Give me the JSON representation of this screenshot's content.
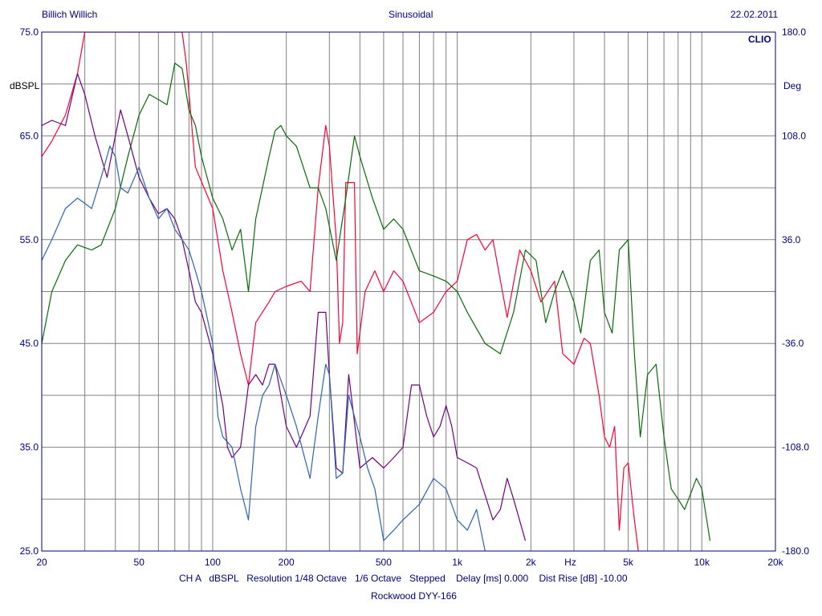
{
  "header": {
    "left": "Billich Willich",
    "center": "Sinusoidal",
    "right": "22.02.2011"
  },
  "brand": "CLIO",
  "footer": {
    "settings": "CH A   dBSPL   Resolution 1/48 Octave   1/6 Octave   Stepped    Delay [ms] 0.000    Dist Rise [dB] -10.00",
    "title": "Rockwood DYY-166"
  },
  "colors": {
    "axis": "#000080",
    "grid": "#808080",
    "red": "#ff0033",
    "green": "#0a6b0a",
    "purple": "#700080",
    "blue": "#2e64b0"
  },
  "chart_data": {
    "type": "line",
    "x_scale": "log",
    "xlim": [
      20,
      20000
    ],
    "x_ticks": [
      {
        "v": 20,
        "label": "20"
      },
      {
        "v": 50,
        "label": "50"
      },
      {
        "v": 100,
        "label": "100"
      },
      {
        "v": 200,
        "label": "200"
      },
      {
        "v": 500,
        "label": "500"
      },
      {
        "v": 1000,
        "label": "1k"
      },
      {
        "v": 2000,
        "label": "2k"
      },
      {
        "v": 2900,
        "label": "Hz"
      },
      {
        "v": 5000,
        "label": "5k"
      },
      {
        "v": 10000,
        "label": "10k"
      },
      {
        "v": 20000,
        "label": "20k"
      }
    ],
    "y_left": {
      "label": "dBSPL",
      "lim": [
        25,
        75
      ],
      "ticks": [
        "25.0",
        "35.0",
        "45.0",
        "55.0",
        "65.0",
        "75.0"
      ]
    },
    "y_right": {
      "label": "Deg",
      "lim": [
        -180,
        180
      ],
      "ticks": [
        "-180.0",
        "-108.0",
        "-36.0",
        "36.0",
        "108.0",
        "180.0"
      ]
    },
    "grid": true,
    "series": [
      {
        "color": "red",
        "points": [
          [
            20,
            63
          ],
          [
            22,
            64.5
          ],
          [
            25,
            67
          ],
          [
            28,
            71
          ],
          [
            30,
            75
          ],
          [
            75,
            75
          ],
          [
            78,
            72
          ],
          [
            85,
            62
          ],
          [
            100,
            58
          ],
          [
            110,
            52
          ],
          [
            120,
            48
          ],
          [
            130,
            44
          ],
          [
            140,
            41
          ],
          [
            150,
            47
          ],
          [
            170,
            49
          ],
          [
            180,
            50
          ],
          [
            200,
            50.5
          ],
          [
            230,
            51
          ],
          [
            250,
            50
          ],
          [
            270,
            60
          ],
          [
            290,
            66
          ],
          [
            300,
            64
          ],
          [
            320,
            55
          ],
          [
            330,
            45
          ],
          [
            340,
            47
          ],
          [
            350,
            60.5
          ],
          [
            380,
            60.5
          ],
          [
            390,
            44
          ],
          [
            420,
            50
          ],
          [
            460,
            52
          ],
          [
            500,
            50
          ],
          [
            550,
            52
          ],
          [
            600,
            51
          ],
          [
            700,
            47
          ],
          [
            800,
            48
          ],
          [
            900,
            50
          ],
          [
            1000,
            51
          ],
          [
            1100,
            55
          ],
          [
            1200,
            55.5
          ],
          [
            1300,
            54
          ],
          [
            1400,
            55
          ],
          [
            1600,
            47.5
          ],
          [
            1800,
            54
          ],
          [
            2000,
            52
          ],
          [
            2200,
            49
          ],
          [
            2500,
            51
          ],
          [
            2700,
            44
          ],
          [
            3000,
            43
          ],
          [
            3300,
            45.5
          ],
          [
            3500,
            45
          ],
          [
            3800,
            40
          ],
          [
            4000,
            36
          ],
          [
            4200,
            35
          ],
          [
            4400,
            37
          ],
          [
            4600,
            27
          ],
          [
            4800,
            33
          ],
          [
            5000,
            33.5
          ],
          [
            5300,
            28
          ],
          [
            5500,
            25
          ]
        ]
      },
      {
        "color": "green",
        "points": [
          [
            20,
            45
          ],
          [
            22,
            50
          ],
          [
            25,
            53
          ],
          [
            28,
            54.5
          ],
          [
            32,
            54
          ],
          [
            35,
            54.5
          ],
          [
            40,
            58
          ],
          [
            45,
            63
          ],
          [
            50,
            67
          ],
          [
            55,
            69
          ],
          [
            60,
            68.5
          ],
          [
            65,
            68
          ],
          [
            70,
            72
          ],
          [
            75,
            71.5
          ],
          [
            80,
            67.5
          ],
          [
            85,
            66
          ],
          [
            90,
            63
          ],
          [
            100,
            59
          ],
          [
            110,
            57
          ],
          [
            120,
            54
          ],
          [
            130,
            56
          ],
          [
            140,
            50
          ],
          [
            150,
            57
          ],
          [
            170,
            63
          ],
          [
            180,
            65.5
          ],
          [
            190,
            66
          ],
          [
            200,
            65
          ],
          [
            220,
            64
          ],
          [
            250,
            60
          ],
          [
            270,
            60
          ],
          [
            290,
            58
          ],
          [
            320,
            53
          ],
          [
            350,
            59
          ],
          [
            380,
            65
          ],
          [
            400,
            63
          ],
          [
            450,
            59
          ],
          [
            500,
            56
          ],
          [
            550,
            57
          ],
          [
            600,
            56
          ],
          [
            700,
            52
          ],
          [
            800,
            51.5
          ],
          [
            900,
            51
          ],
          [
            1000,
            50
          ],
          [
            1100,
            48
          ],
          [
            1300,
            45
          ],
          [
            1500,
            44
          ],
          [
            1700,
            48
          ],
          [
            1900,
            54
          ],
          [
            2100,
            53
          ],
          [
            2300,
            47
          ],
          [
            2500,
            50
          ],
          [
            2700,
            52
          ],
          [
            3000,
            49
          ],
          [
            3200,
            46
          ],
          [
            3500,
            53
          ],
          [
            3800,
            54
          ],
          [
            4000,
            48
          ],
          [
            4300,
            46
          ],
          [
            4600,
            54
          ],
          [
            5000,
            55
          ],
          [
            5300,
            44
          ],
          [
            5600,
            36
          ],
          [
            6000,
            42
          ],
          [
            6500,
            43
          ],
          [
            7000,
            36
          ],
          [
            7500,
            31
          ],
          [
            8000,
            30
          ],
          [
            8500,
            29
          ],
          [
            9000,
            30.5
          ],
          [
            9500,
            32
          ],
          [
            10000,
            31
          ],
          [
            10800,
            26
          ]
        ]
      },
      {
        "color": "purple",
        "points": [
          [
            20,
            66
          ],
          [
            22,
            66.5
          ],
          [
            25,
            66
          ],
          [
            28,
            71
          ],
          [
            30,
            69
          ],
          [
            33,
            65
          ],
          [
            37,
            61
          ],
          [
            40,
            65
          ],
          [
            42,
            67.5
          ],
          [
            45,
            65
          ],
          [
            50,
            61
          ],
          [
            55,
            59
          ],
          [
            60,
            57.5
          ],
          [
            65,
            58
          ],
          [
            70,
            57
          ],
          [
            75,
            55
          ],
          [
            80,
            52
          ],
          [
            85,
            49
          ],
          [
            90,
            48
          ],
          [
            100,
            44
          ],
          [
            110,
            39
          ],
          [
            115,
            35
          ],
          [
            120,
            34
          ],
          [
            130,
            35
          ],
          [
            140,
            41
          ],
          [
            150,
            42
          ],
          [
            160,
            41
          ],
          [
            170,
            43
          ],
          [
            180,
            43
          ],
          [
            190,
            40
          ],
          [
            200,
            37
          ],
          [
            220,
            35
          ],
          [
            250,
            38
          ],
          [
            270,
            48
          ],
          [
            290,
            48
          ],
          [
            300,
            42
          ],
          [
            320,
            33
          ],
          [
            340,
            32.5
          ],
          [
            360,
            42
          ],
          [
            400,
            33
          ],
          [
            450,
            34
          ],
          [
            500,
            33
          ],
          [
            550,
            34
          ],
          [
            600,
            35
          ],
          [
            650,
            41
          ],
          [
            700,
            41
          ],
          [
            750,
            38
          ],
          [
            800,
            36
          ],
          [
            850,
            37
          ],
          [
            900,
            39
          ],
          [
            950,
            37
          ],
          [
            1000,
            34
          ],
          [
            1100,
            33.5
          ],
          [
            1200,
            33
          ],
          [
            1400,
            28
          ],
          [
            1500,
            29
          ],
          [
            1600,
            32
          ],
          [
            1700,
            30
          ],
          [
            1900,
            26
          ]
        ]
      },
      {
        "color": "blue",
        "points": [
          [
            20,
            53
          ],
          [
            22,
            55
          ],
          [
            25,
            58
          ],
          [
            28,
            59
          ],
          [
            30,
            58.5
          ],
          [
            32,
            58
          ],
          [
            35,
            61
          ],
          [
            38,
            64
          ],
          [
            40,
            63
          ],
          [
            42,
            60
          ],
          [
            45,
            59.5
          ],
          [
            50,
            62
          ],
          [
            55,
            59
          ],
          [
            60,
            57
          ],
          [
            65,
            58
          ],
          [
            70,
            56
          ],
          [
            75,
            55
          ],
          [
            80,
            54
          ],
          [
            85,
            52
          ],
          [
            90,
            50
          ],
          [
            100,
            45
          ],
          [
            105,
            38
          ],
          [
            110,
            36
          ],
          [
            120,
            35
          ],
          [
            130,
            31
          ],
          [
            140,
            28
          ],
          [
            150,
            37
          ],
          [
            160,
            40
          ],
          [
            170,
            41
          ],
          [
            180,
            43
          ],
          [
            200,
            40
          ],
          [
            220,
            37
          ],
          [
            250,
            32
          ],
          [
            270,
            38
          ],
          [
            290,
            43
          ],
          [
            300,
            42
          ],
          [
            320,
            32
          ],
          [
            340,
            32.5
          ],
          [
            360,
            40
          ],
          [
            400,
            36
          ],
          [
            430,
            33
          ],
          [
            460,
            31
          ],
          [
            500,
            26
          ],
          [
            550,
            27
          ],
          [
            600,
            28
          ],
          [
            700,
            29.5
          ],
          [
            800,
            32
          ],
          [
            900,
            31
          ],
          [
            1000,
            28
          ],
          [
            1100,
            27
          ],
          [
            1200,
            29
          ],
          [
            1300,
            25
          ]
        ]
      }
    ]
  }
}
